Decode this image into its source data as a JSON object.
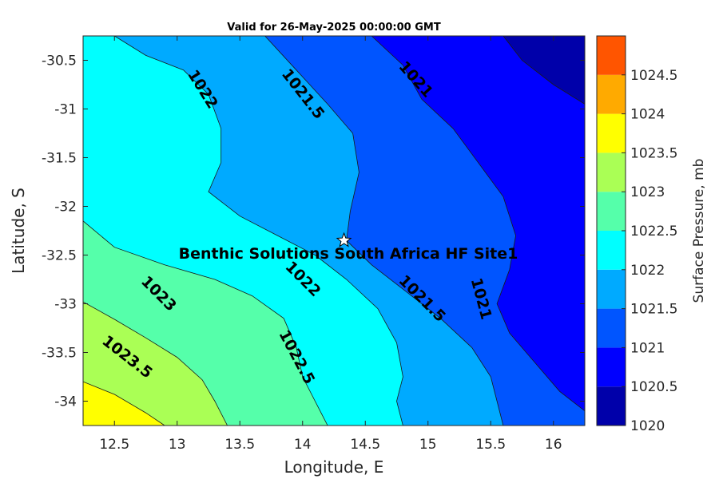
{
  "chart_data": {
    "type": "contour",
    "title": "Valid for 26-May-2025 00:00:00 GMT",
    "xlabel": "Longitude, E",
    "ylabel": "Latitude, S",
    "xlim": [
      12.25,
      16.25
    ],
    "ylim": [
      -34.25,
      -30.25
    ],
    "xticks": [
      12.5,
      13,
      13.5,
      14,
      14.5,
      15,
      15.5,
      16
    ],
    "xtick_labels": [
      "12.5",
      "13",
      "13.5",
      "14",
      "14.5",
      "15",
      "15.5",
      "16"
    ],
    "yticks": [
      -30.5,
      -31,
      -31.5,
      -32,
      -32.5,
      -33,
      -33.5,
      -34
    ],
    "ytick_labels": [
      "-30.5",
      "-31",
      "-31.5",
      "-32",
      "-32.5",
      "-33",
      "-33.5",
      "-34"
    ],
    "levels": [
      1020,
      1020.5,
      1021,
      1021.5,
      1022,
      1022.5,
      1023,
      1023.5,
      1024,
      1024.5
    ],
    "level_colors": [
      "#0000aa",
      "#0000ff",
      "#0055ff",
      "#00aaff",
      "#00ffff",
      "#55ffaa",
      "#aaff55",
      "#ffff00",
      "#ffaa00",
      "#ff5500"
    ],
    "contour_lines": [
      {
        "value": 1023.5,
        "points": [
          [
            12.25,
            -33.8
          ],
          [
            12.5,
            -33.93
          ],
          [
            12.75,
            -34.12
          ],
          [
            12.9,
            -34.25
          ]
        ]
      },
      {
        "value": 1023.0,
        "points": [
          [
            12.25,
            -32.98
          ],
          [
            12.5,
            -33.16
          ],
          [
            12.75,
            -33.35
          ],
          [
            13.0,
            -33.55
          ],
          [
            13.2,
            -33.78
          ],
          [
            13.3,
            -34.0
          ],
          [
            13.4,
            -34.25
          ]
        ]
      },
      {
        "value": 1022.5,
        "points": [
          [
            12.25,
            -32.15
          ],
          [
            12.5,
            -32.42
          ],
          [
            12.9,
            -32.6
          ],
          [
            13.3,
            -32.75
          ],
          [
            13.6,
            -32.92
          ],
          [
            13.85,
            -33.15
          ],
          [
            13.95,
            -33.45
          ],
          [
            14.0,
            -33.75
          ],
          [
            14.1,
            -34.0
          ],
          [
            14.2,
            -34.25
          ]
        ]
      },
      {
        "value": 1022.0,
        "points": [
          [
            12.5,
            -30.25
          ],
          [
            12.75,
            -30.45
          ],
          [
            13.05,
            -30.6
          ],
          [
            13.25,
            -30.85
          ],
          [
            13.35,
            -31.2
          ],
          [
            13.35,
            -31.55
          ],
          [
            13.25,
            -31.85
          ],
          [
            13.5,
            -32.1
          ],
          [
            13.8,
            -32.3
          ],
          [
            14.1,
            -32.5
          ],
          [
            14.35,
            -32.75
          ],
          [
            14.6,
            -33.05
          ],
          [
            14.75,
            -33.4
          ],
          [
            14.8,
            -33.75
          ],
          [
            14.75,
            -34.0
          ],
          [
            14.8,
            -34.25
          ]
        ]
      },
      {
        "value": 1021.5,
        "points": [
          [
            13.7,
            -30.25
          ],
          [
            13.95,
            -30.6
          ],
          [
            14.2,
            -30.95
          ],
          [
            14.4,
            -31.25
          ],
          [
            14.45,
            -31.65
          ],
          [
            14.38,
            -32.05
          ],
          [
            14.35,
            -32.35
          ],
          [
            14.55,
            -32.6
          ],
          [
            14.8,
            -32.85
          ],
          [
            15.1,
            -33.15
          ],
          [
            15.35,
            -33.45
          ],
          [
            15.5,
            -33.75
          ],
          [
            15.55,
            -34.0
          ],
          [
            15.6,
            -34.25
          ]
        ]
      },
      {
        "value": 1021.0,
        "points": [
          [
            14.55,
            -30.25
          ],
          [
            14.8,
            -30.55
          ],
          [
            14.95,
            -30.9
          ],
          [
            15.2,
            -31.2
          ],
          [
            15.4,
            -31.55
          ],
          [
            15.6,
            -31.9
          ],
          [
            15.7,
            -32.3
          ],
          [
            15.65,
            -32.65
          ],
          [
            15.55,
            -33.0
          ],
          [
            15.65,
            -33.3
          ],
          [
            15.85,
            -33.6
          ],
          [
            16.05,
            -33.9
          ],
          [
            16.25,
            -34.1
          ]
        ]
      },
      {
        "value": 1020.5,
        "points": [
          [
            15.6,
            -30.25
          ],
          [
            15.75,
            -30.5
          ],
          [
            16.0,
            -30.75
          ],
          [
            16.25,
            -30.95
          ]
        ]
      }
    ],
    "contour_labels": [
      {
        "text": "1022",
        "x": 13.2,
        "y": -30.8,
        "angle": 58
      },
      {
        "text": "1021.5",
        "x": 14.0,
        "y": -30.85,
        "angle": 52
      },
      {
        "text": "1021",
        "x": 14.9,
        "y": -30.7,
        "angle": 48
      },
      {
        "text": "1023",
        "x": 12.85,
        "y": -32.9,
        "angle": 45
      },
      {
        "text": "1022",
        "x": 14.0,
        "y": -32.75,
        "angle": 45
      },
      {
        "text": "1021.5",
        "x": 14.95,
        "y": -32.95,
        "angle": 45
      },
      {
        "text": "1021",
        "x": 15.42,
        "y": -32.95,
        "angle": 75
      },
      {
        "text": "1023.5",
        "x": 12.6,
        "y": -33.55,
        "angle": 38
      },
      {
        "text": "1022.5",
        "x": 13.95,
        "y": -33.55,
        "angle": 62
      }
    ],
    "site": {
      "label": "Benthic Solutions South Africa HF Site1",
      "lon": 14.33,
      "lat": -32.35
    },
    "colorbar": {
      "label": "Surface Pressure, mb",
      "ticks": [
        1020,
        1020.5,
        1021,
        1021.5,
        1022,
        1022.5,
        1023,
        1023.5,
        1024,
        1024.5
      ],
      "tick_labels": [
        "1020",
        "1020.5",
        "1021",
        "1021.5",
        "1022",
        "1022.5",
        "1023",
        "1023.5",
        "1024",
        "1024.5"
      ]
    }
  }
}
